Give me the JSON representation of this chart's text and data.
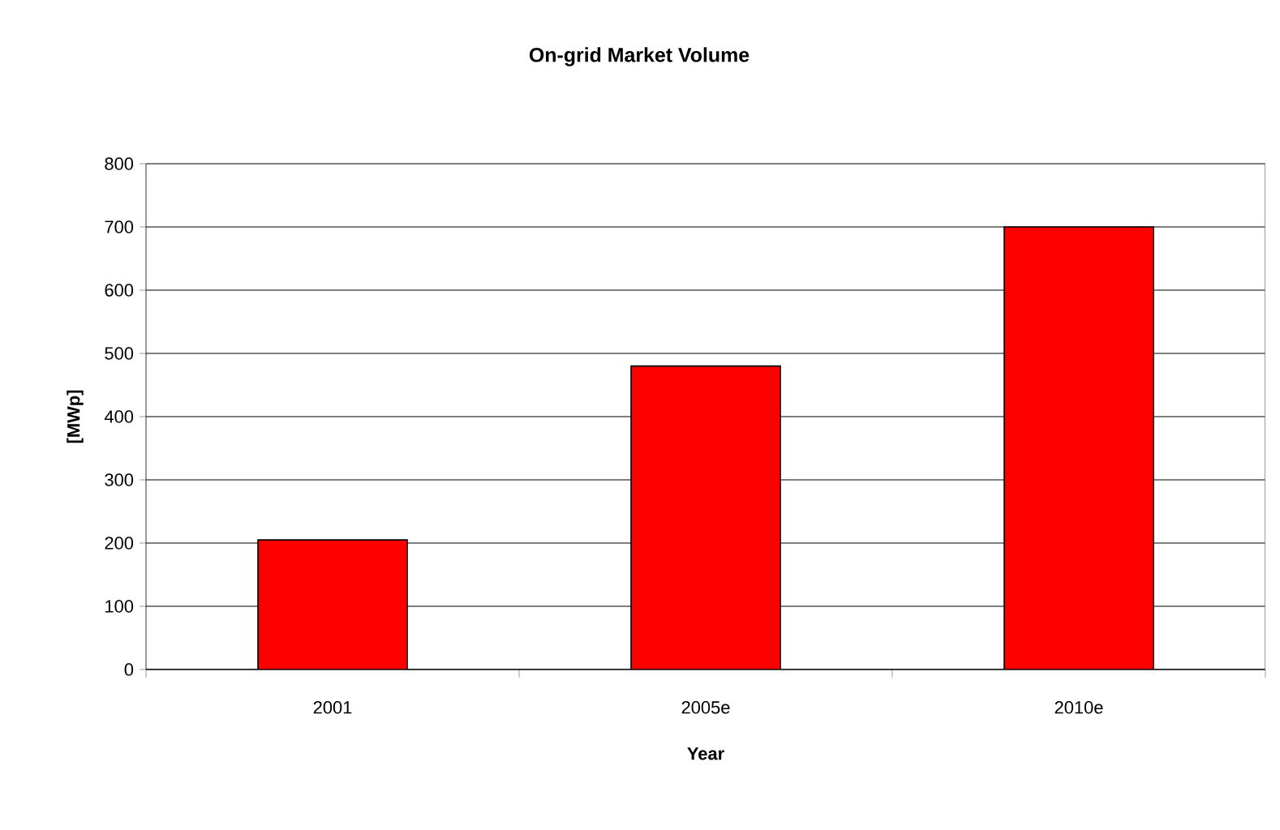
{
  "chart_data": {
    "type": "bar",
    "title": "On-grid Market Volume",
    "xlabel": "Year",
    "ylabel": "[MWp]",
    "categories": [
      "2001",
      "2005e",
      "2010e"
    ],
    "values": [
      205,
      480,
      700
    ],
    "color": "#ff0000",
    "ylim": [
      0,
      800
    ],
    "yticks": [
      0,
      100,
      200,
      300,
      400,
      500,
      600,
      700,
      800
    ],
    "grid": "y"
  }
}
